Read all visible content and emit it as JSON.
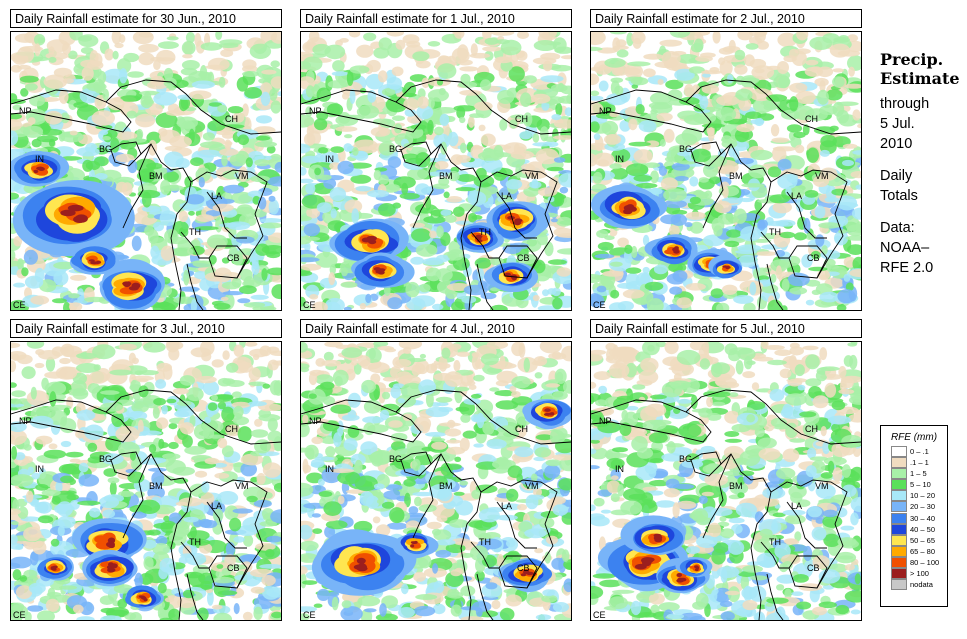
{
  "panels": [
    {
      "title": "Daily Rainfall estimate for  30 Jun., 2010",
      "day": 0
    },
    {
      "title": "Daily Rainfall estimate for  1 Jul., 2010",
      "day": 1
    },
    {
      "title": "Daily Rainfall estimate for  2 Jul., 2010",
      "day": 2
    },
    {
      "title": "Daily Rainfall estimate for  3 Jul., 2010",
      "day": 3
    },
    {
      "title": "Daily Rainfall estimate for  4 Jul., 2010",
      "day": 4
    },
    {
      "title": "Daily Rainfall estimate for  5 Jul., 2010",
      "day": 5
    }
  ],
  "country_labels": [
    "NP",
    "CH",
    "IN",
    "BG",
    "BM",
    "VM",
    "LA",
    "TH",
    "CB",
    "CE"
  ],
  "sidebar": {
    "title_line1": "Precip.",
    "title_line2": "Estimate",
    "through_label": "through",
    "date_line1": "5 Jul.",
    "date_line2": "2010",
    "period_line1": "Daily",
    "period_line2": "Totals",
    "source_line1": "Data:",
    "source_line2": "NOAA–",
    "source_line3": "RFE 2.0"
  },
  "legend": {
    "title": "RFE (mm)",
    "items": [
      {
        "label": "0 – .1",
        "color": "#ffffff"
      },
      {
        "label": ".1 – 1",
        "color": "#f0dcc0"
      },
      {
        "label": "1 – 5",
        "color": "#a8f0a8"
      },
      {
        "label": "5 – 10",
        "color": "#5ae05a"
      },
      {
        "label": "10 – 20",
        "color": "#a8e8f8"
      },
      {
        "label": "20 – 30",
        "color": "#78b4f8"
      },
      {
        "label": "30 – 40",
        "color": "#3c82f0"
      },
      {
        "label": "40 – 50",
        "color": "#1e46dc"
      },
      {
        "label": "50 – 65",
        "color": "#ffe650"
      },
      {
        "label": "65 – 80",
        "color": "#ffaa00"
      },
      {
        "label": "80 – 100",
        "color": "#f05000"
      },
      {
        "label": "> 100",
        "color": "#9b1e1e"
      },
      {
        "label": "nodata",
        "color": "#c8c8c8"
      }
    ]
  }
}
